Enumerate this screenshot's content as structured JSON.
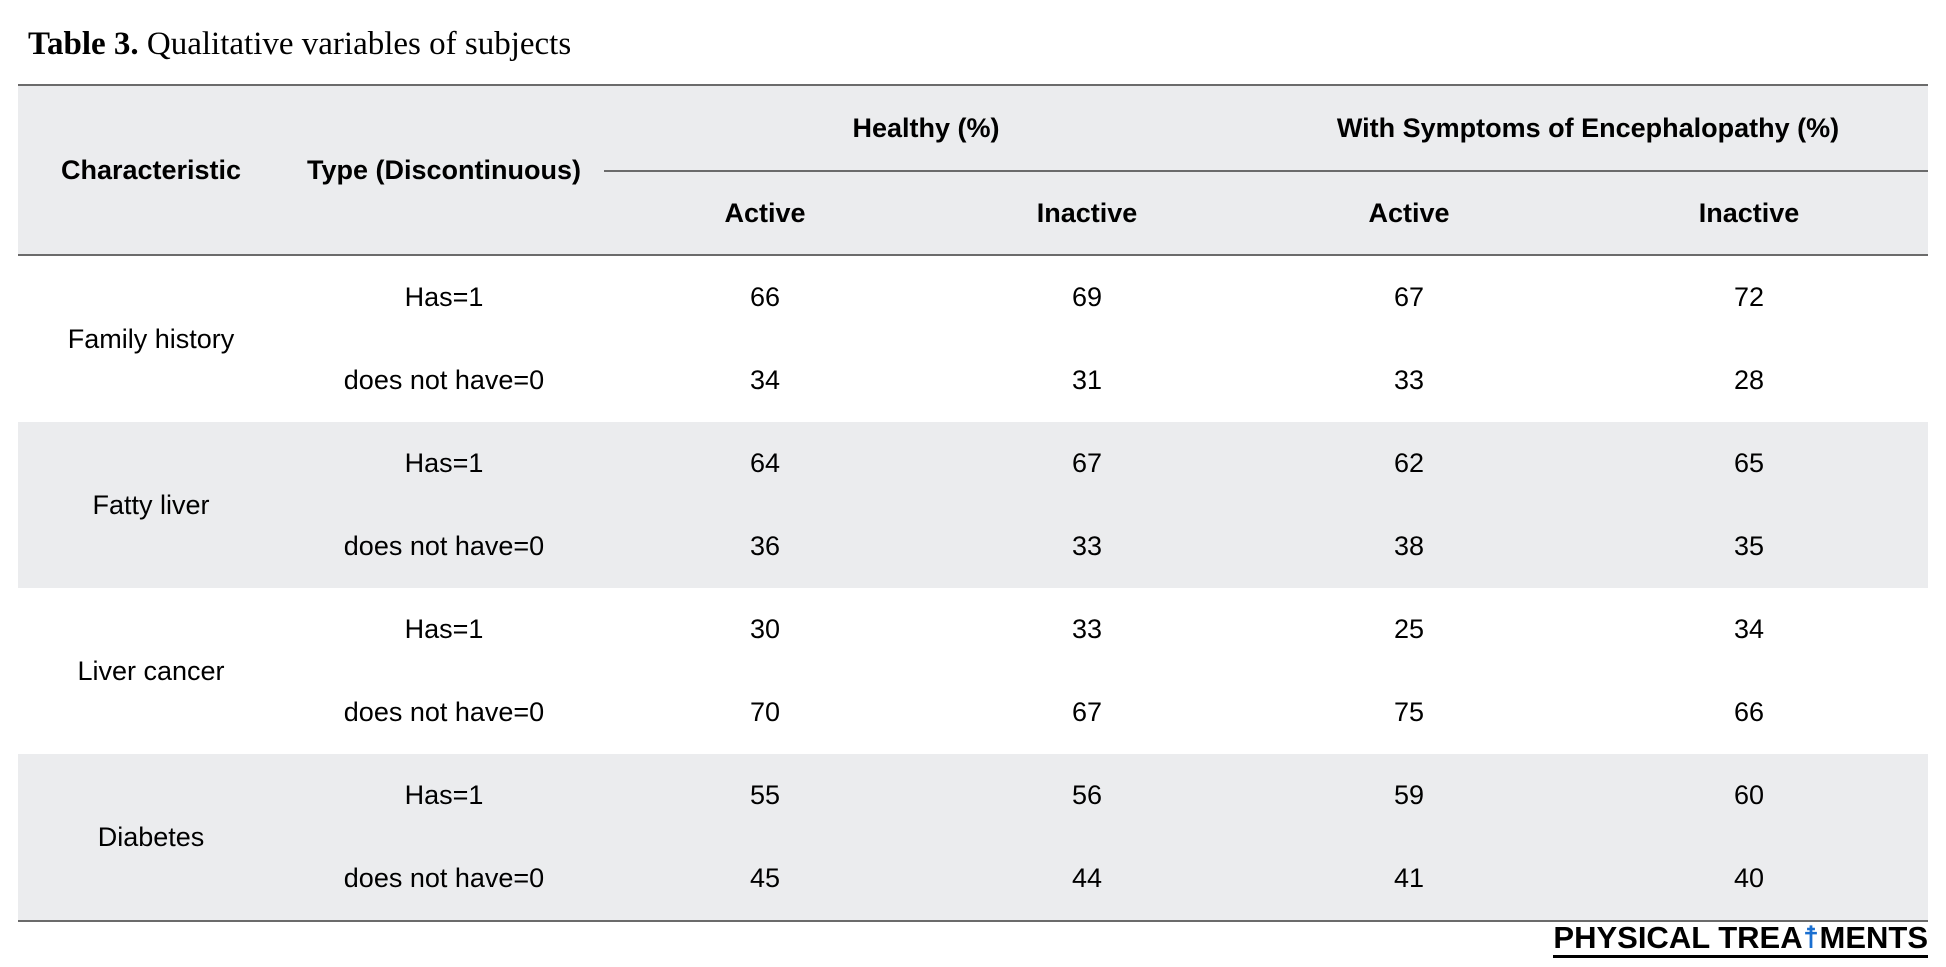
{
  "caption": {
    "label": "Table 3.",
    "text": "Qualitative variables of subjects"
  },
  "table": {
    "headers": {
      "characteristic": "Characteristic",
      "type": "Type (Discontinuous)",
      "group_healthy": "Healthy (%)",
      "group_symptoms": "With Symptoms of Encephalopathy (%)",
      "healthy_active": "Active",
      "healthy_inactive": "Inactive",
      "symptoms_active": "Active",
      "symptoms_inactive": "Inactive"
    },
    "rows": [
      {
        "characteristic": "Family history",
        "has": {
          "type": "Has=1",
          "values": [
            "66",
            "69",
            "67",
            "72"
          ]
        },
        "not": {
          "type": "does not have=0",
          "values": [
            "34",
            "31",
            "33",
            "28"
          ]
        }
      },
      {
        "characteristic": "Fatty liver",
        "has": {
          "type": "Has=1",
          "values": [
            "64",
            "67",
            "62",
            "65"
          ]
        },
        "not": {
          "type": "does not have=0",
          "values": [
            "36",
            "33",
            "38",
            "35"
          ]
        }
      },
      {
        "characteristic": "Liver cancer",
        "has": {
          "type": "Has=1",
          "values": [
            "30",
            "33",
            "25",
            "34"
          ]
        },
        "not": {
          "type": "does not have=0",
          "values": [
            "70",
            "67",
            "75",
            "66"
          ]
        }
      },
      {
        "characteristic": "Diabetes",
        "has": {
          "type": "Has=1",
          "values": [
            "55",
            "56",
            "59",
            "60"
          ]
        },
        "not": {
          "type": "does not have=0",
          "values": [
            "45",
            "44",
            "41",
            "40"
          ]
        }
      }
    ]
  },
  "logo": {
    "text_before": "PHYSICAL TREA",
    "figure_glyph": "☨",
    "text_after": "MENTS",
    "figure_color": "#1a6fd0"
  }
}
